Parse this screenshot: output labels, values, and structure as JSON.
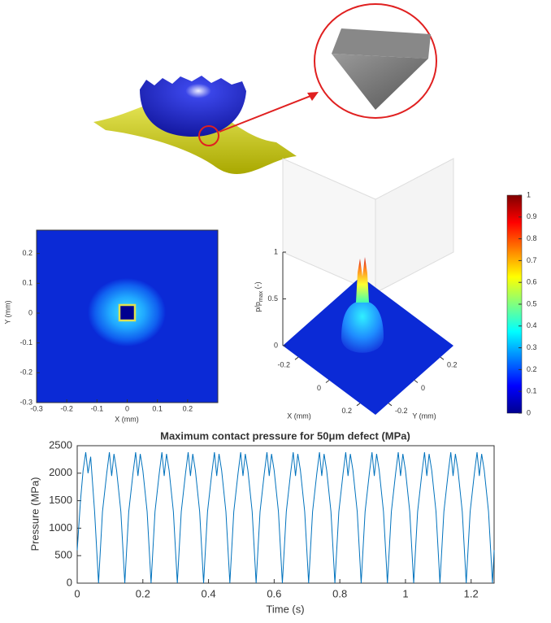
{
  "chart_data": [
    {
      "type": "heatmap",
      "xlabel": "X (mm)",
      "ylabel": "Y (mm)",
      "xlim": [
        -0.3,
        0.3
      ],
      "ylim": [
        -0.3,
        0.3
      ],
      "xticks": [
        -0.3,
        -0.2,
        -0.1,
        0,
        0.1,
        0.2
      ],
      "yticks": [
        -0.3,
        -0.2,
        -0.1,
        0,
        0.1,
        0.2
      ]
    },
    {
      "type": "surface",
      "xlabel": "X (mm)",
      "ylabel": "Y (mm)",
      "zlabel": "p/p",
      "zlabel_sub": "max",
      "zlabel_end": " (-)",
      "xlim": [
        -0.3,
        0.3
      ],
      "ylim": [
        -0.3,
        0.3
      ],
      "zlim": [
        0,
        1
      ],
      "xticks": [
        -0.2,
        0,
        0.2
      ],
      "yticks": [
        -0.2,
        0,
        0.2
      ],
      "zticks": [
        0,
        0.5,
        1
      ]
    },
    {
      "type": "colorbar",
      "lim": [
        0,
        1
      ],
      "ticks": [
        0,
        0.1,
        0.2,
        0.3,
        0.4,
        0.5,
        0.6,
        0.7,
        0.8,
        0.9,
        1
      ]
    },
    {
      "type": "line",
      "title": "Maximum contact pressure for 50μm defect (MPa)",
      "xlabel": "Time (s)",
      "ylabel": "Pressure (MPa)",
      "color": "#0072bd",
      "xlim": [
        0,
        1.27
      ],
      "ylim": [
        0,
        2500
      ],
      "xticks": [
        0,
        0.2,
        0.4,
        0.6,
        0.8,
        1,
        1.2
      ],
      "yticks": [
        0,
        500,
        1000,
        1500,
        2000,
        2500
      ],
      "x": [
        0,
        0.01,
        0.018,
        0.026,
        0.033,
        0.041,
        0.053,
        0.065,
        0.077,
        0.09,
        0.098,
        0.105,
        0.112,
        0.12,
        0.133,
        0.145,
        0.157,
        0.17,
        0.178,
        0.185,
        0.192,
        0.2,
        0.213,
        0.225,
        0.237,
        0.25,
        0.258,
        0.265,
        0.272,
        0.28,
        0.293,
        0.305,
        0.317,
        0.33,
        0.338,
        0.345,
        0.352,
        0.36,
        0.373,
        0.385,
        0.397,
        0.41,
        0.418,
        0.425,
        0.432,
        0.44,
        0.453,
        0.465,
        0.477,
        0.49,
        0.498,
        0.505,
        0.512,
        0.52,
        0.533,
        0.545,
        0.557,
        0.57,
        0.578,
        0.585,
        0.592,
        0.6,
        0.613,
        0.625,
        0.637,
        0.65,
        0.658,
        0.665,
        0.672,
        0.68,
        0.693,
        0.705,
        0.717,
        0.73,
        0.738,
        0.745,
        0.752,
        0.76,
        0.773,
        0.785,
        0.797,
        0.81,
        0.818,
        0.825,
        0.832,
        0.84,
        0.853,
        0.865,
        0.877,
        0.89,
        0.898,
        0.905,
        0.912,
        0.92,
        0.933,
        0.945,
        0.957,
        0.97,
        0.978,
        0.985,
        0.992,
        1,
        1.013,
        1.025,
        1.037,
        1.05,
        1.058,
        1.065,
        1.072,
        1.08,
        1.093,
        1.105,
        1.117,
        1.13,
        1.138,
        1.145,
        1.152,
        1.16,
        1.173,
        1.185,
        1.197,
        1.21,
        1.218,
        1.225,
        1.232,
        1.24,
        1.253,
        1.265,
        1.27
      ],
      "values": [
        600,
        1500,
        2050,
        2380,
        2000,
        2300,
        1300,
        0,
        1300,
        2000,
        2380,
        1950,
        2350,
        2050,
        1300,
        0,
        1300,
        2000,
        2380,
        1950,
        2350,
        2050,
        1300,
        0,
        1300,
        2000,
        2380,
        1950,
        2350,
        2050,
        1300,
        0,
        1300,
        2000,
        2380,
        1950,
        2350,
        2050,
        1300,
        0,
        1300,
        2000,
        2380,
        1950,
        2350,
        2050,
        1300,
        0,
        1300,
        2000,
        2380,
        1950,
        2350,
        2050,
        1300,
        0,
        1300,
        2000,
        2380,
        1950,
        2350,
        2050,
        1300,
        0,
        1300,
        2000,
        2380,
        1950,
        2350,
        2050,
        1300,
        0,
        1300,
        2000,
        2380,
        1950,
        2350,
        2050,
        1300,
        0,
        1300,
        2000,
        2380,
        1950,
        2350,
        2050,
        1300,
        0,
        1300,
        2000,
        2380,
        1950,
        2350,
        2050,
        1300,
        0,
        1300,
        2000,
        2380,
        1950,
        2350,
        2050,
        1300,
        0,
        1300,
        2000,
        2380,
        1950,
        2350,
        2050,
        1300,
        0,
        1300,
        2000,
        2380,
        1950,
        2350,
        2050,
        1300,
        0,
        1300,
        2000,
        2380,
        1950,
        2350,
        2050,
        1300,
        0,
        600
      ]
    }
  ]
}
